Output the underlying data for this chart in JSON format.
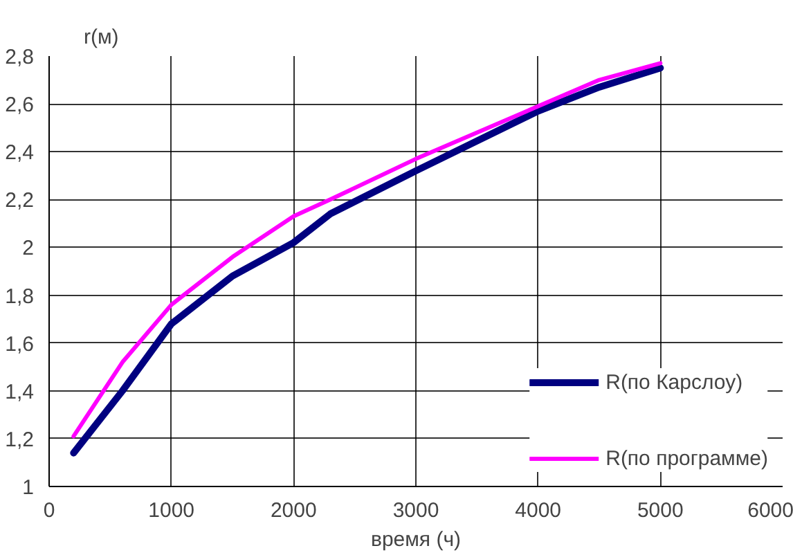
{
  "chart_data": {
    "type": "line",
    "xlabel": "время (ч)",
    "ylabel": "r(м)",
    "xlim": [
      0,
      6000
    ],
    "xticks": [
      0,
      1000,
      2000,
      3000,
      4000,
      5000,
      6000
    ],
    "ylim": [
      1,
      2.8
    ],
    "yticks": [
      {
        "value": 1,
        "label": "1"
      },
      {
        "value": 1.2,
        "label": "1,2"
      },
      {
        "value": 1.4,
        "label": "1,4"
      },
      {
        "value": 1.6,
        "label": "1,6"
      },
      {
        "value": 1.8,
        "label": "1,8"
      },
      {
        "value": 2,
        "label": "2"
      },
      {
        "value": 2.2,
        "label": "2,2"
      },
      {
        "value": 2.4,
        "label": "2,4"
      },
      {
        "value": 2.6,
        "label": "2,6"
      },
      {
        "value": 2.8,
        "label": "2,8"
      }
    ],
    "grid": true,
    "legend": "bottom right",
    "marker": "none",
    "line_style": "solid",
    "series": [
      {
        "name": "R(по Карслоу)",
        "color": "#000080",
        "x": [
          200,
          600,
          1000,
          1500,
          2000,
          2300,
          3000,
          4000,
          4500,
          5000
        ],
        "values": [
          1.14,
          1.4,
          1.68,
          1.88,
          2.02,
          2.14,
          2.32,
          2.57,
          2.67,
          2.75
        ]
      },
      {
        "name": "R(по программе)",
        "color": "#ff00ff",
        "x": [
          200,
          600,
          1000,
          1500,
          2000,
          2300,
          3000,
          4000,
          4500,
          5000
        ],
        "values": [
          1.21,
          1.52,
          1.76,
          1.96,
          2.13,
          2.2,
          2.37,
          2.59,
          2.7,
          2.77
        ]
      }
    ]
  }
}
